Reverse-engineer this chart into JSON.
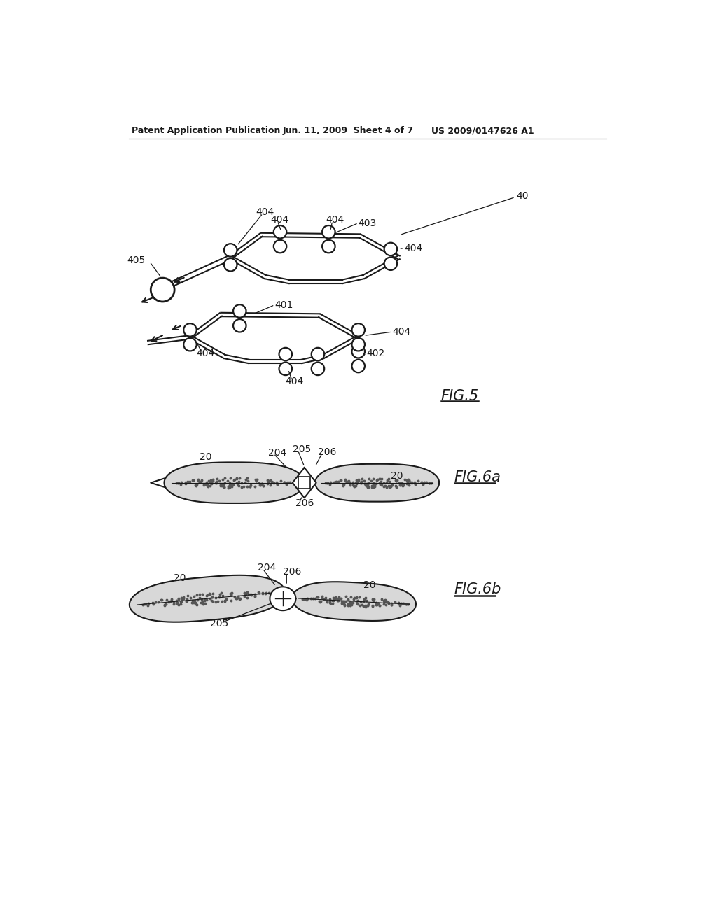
{
  "bg_color": "#ffffff",
  "text_color": "#1a1a1a",
  "header_left": "Patent Application Publication",
  "header_mid": "Jun. 11, 2009  Sheet 4 of 7",
  "header_right": "US 2009/0147626 A1",
  "fig5_label": "FIG.5",
  "fig6a_label": "FIG.6a",
  "fig6b_label": "FIG.6b",
  "lc": "#1a1a1a"
}
